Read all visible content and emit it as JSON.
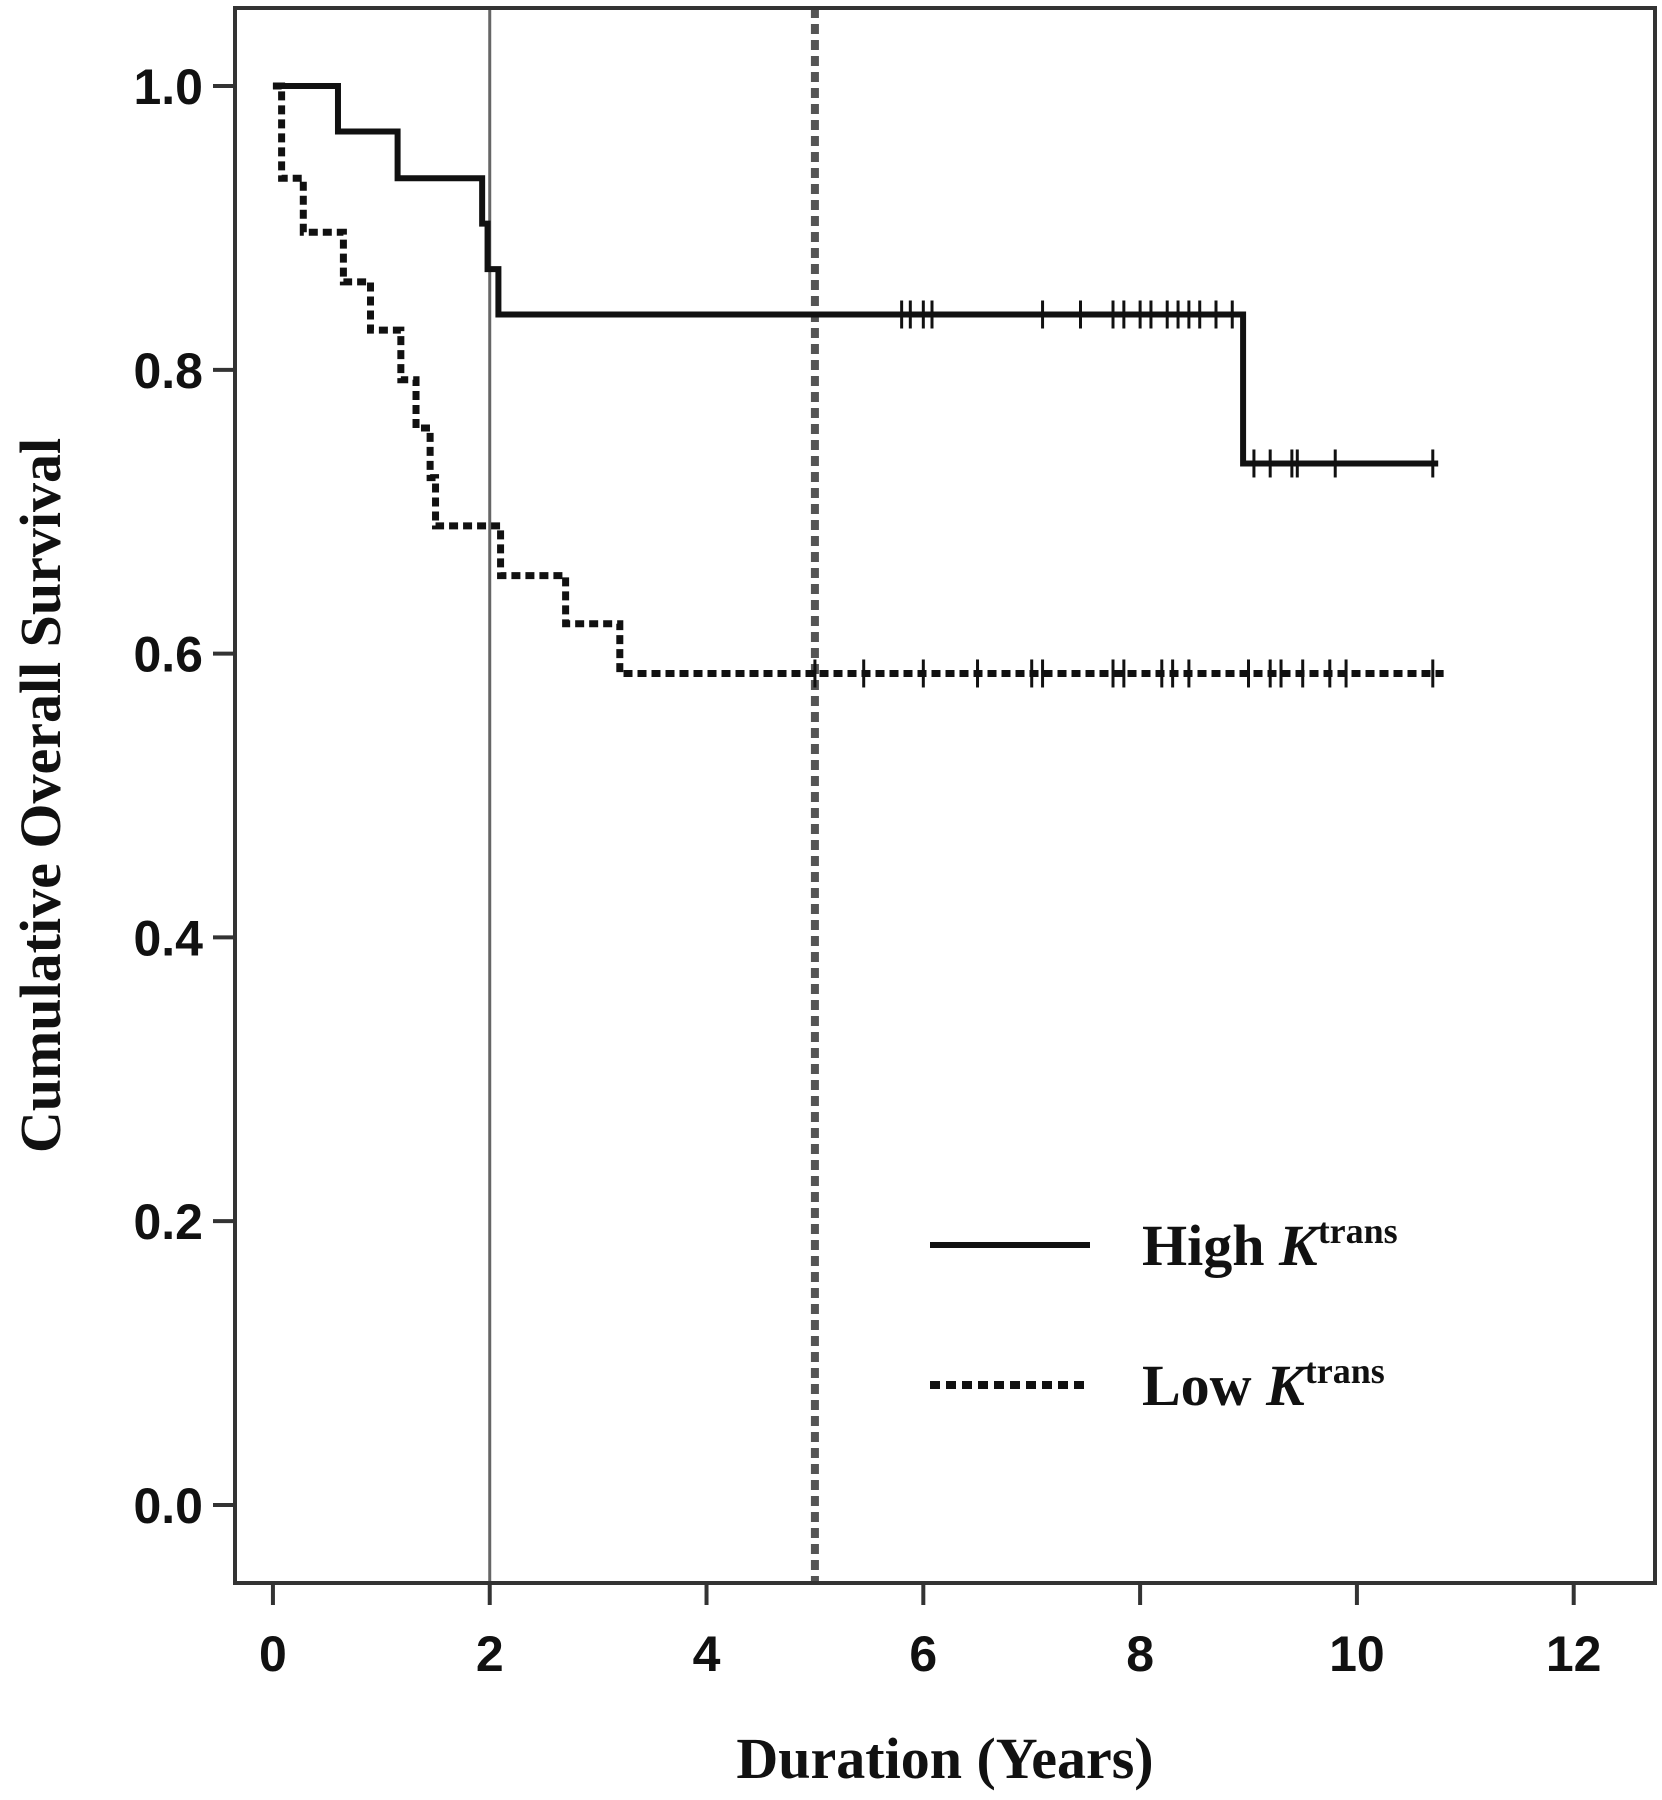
{
  "chart_data": {
    "type": "line",
    "subtype": "kaplan-meier step",
    "title": "",
    "xlabel": "Duration (Years)",
    "ylabel": "Cumulative Overall Survival",
    "xlim": [
      -0.35,
      12.75
    ],
    "ylim": [
      -0.055,
      1.055
    ],
    "xticks": [
      0,
      2,
      4,
      6,
      8,
      10,
      12
    ],
    "yticks": [
      0.0,
      0.2,
      0.4,
      0.6,
      0.8,
      1.0
    ],
    "xtick_labels": [
      "0",
      "2",
      "4",
      "6",
      "8",
      "10",
      "12"
    ],
    "ytick_labels": [
      "0.0",
      "0.2",
      "0.4",
      "0.6",
      "0.8",
      "1.0"
    ],
    "grid": false,
    "legend_position": "bottom-right",
    "reference_lines": [
      {
        "axis": "x",
        "value": 2,
        "style": "solid"
      },
      {
        "axis": "x",
        "value": 5,
        "style": "dotted"
      }
    ],
    "series": [
      {
        "name": "High",
        "name_italic": "K",
        "name_sup": "trans",
        "style": "solid",
        "color": "#111111",
        "steps": [
          [
            0,
            1.0
          ],
          [
            0.6,
            0.968
          ],
          [
            1.15,
            0.935
          ],
          [
            1.93,
            0.903
          ],
          [
            1.98,
            0.871
          ],
          [
            2.08,
            0.839
          ],
          [
            8.95,
            0.734
          ],
          [
            10.75,
            0.734
          ]
        ],
        "censor_times": [
          5.8,
          5.88,
          6.0,
          6.08,
          7.1,
          7.45,
          7.75,
          7.85,
          8.0,
          8.1,
          8.25,
          8.35,
          8.45,
          8.55,
          8.7,
          8.85,
          9.05,
          9.2,
          9.4,
          9.45,
          9.8,
          10.7
        ],
        "censor_values": [
          0.839,
          0.839,
          0.839,
          0.839,
          0.839,
          0.839,
          0.839,
          0.839,
          0.839,
          0.839,
          0.839,
          0.839,
          0.839,
          0.839,
          0.839,
          0.839,
          0.734,
          0.734,
          0.734,
          0.734,
          0.734,
          0.734
        ]
      },
      {
        "name": "Low",
        "name_italic": "K",
        "name_sup": "trans",
        "style": "dotted",
        "color": "#111111",
        "steps": [
          [
            0,
            1.0
          ],
          [
            0.08,
            0.935
          ],
          [
            0.28,
            0.897
          ],
          [
            0.65,
            0.862
          ],
          [
            0.9,
            0.828
          ],
          [
            1.18,
            0.793
          ],
          [
            1.32,
            0.759
          ],
          [
            1.45,
            0.724
          ],
          [
            1.5,
            0.69
          ],
          [
            2.1,
            0.655
          ],
          [
            2.7,
            0.621
          ],
          [
            3.2,
            0.586
          ],
          [
            10.8,
            0.586
          ]
        ],
        "censor_times": [
          5.0,
          5.45,
          6.0,
          6.5,
          7.0,
          7.1,
          7.75,
          7.85,
          8.2,
          8.3,
          8.45,
          9.0,
          9.2,
          9.3,
          9.5,
          9.75,
          9.9,
          10.7
        ],
        "censor_values": [
          0.586,
          0.586,
          0.586,
          0.586,
          0.586,
          0.586,
          0.586,
          0.586,
          0.586,
          0.586,
          0.586,
          0.586,
          0.586,
          0.586,
          0.586,
          0.586,
          0.586,
          0.586
        ]
      }
    ]
  }
}
